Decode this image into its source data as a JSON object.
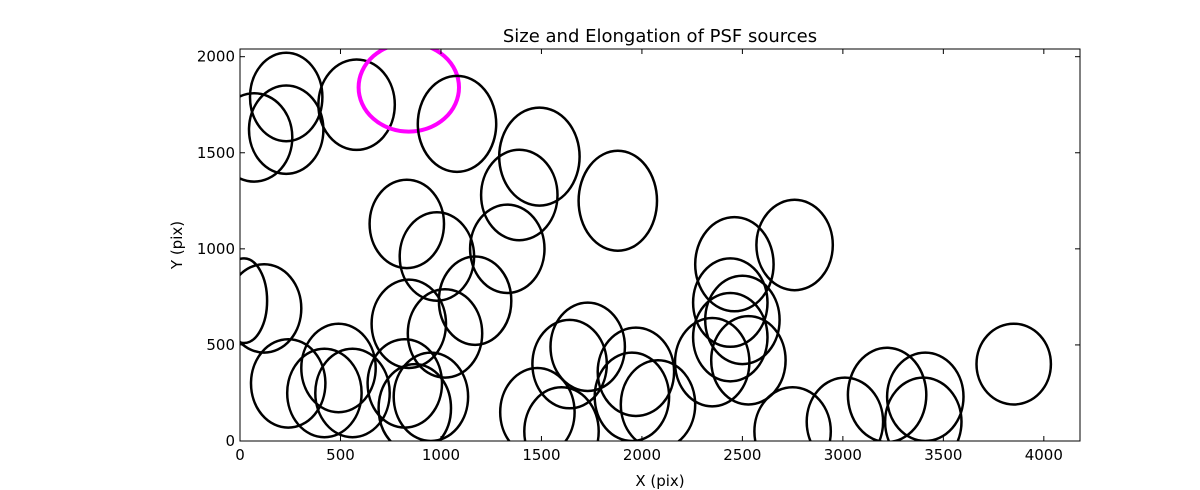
{
  "chart_data": {
    "type": "scatter",
    "marker": "ellipse",
    "title": "Size and Elongation of PSF sources",
    "xlabel": "X (pix)",
    "ylabel": "Y (pix)",
    "xlim": [
      0,
      4180
    ],
    "ylim": [
      0,
      2040
    ],
    "xticks": [
      0,
      500,
      1000,
      1500,
      2000,
      2500,
      3000,
      3500,
      4000
    ],
    "yticks": [
      0,
      500,
      1000,
      1500,
      2000
    ],
    "grid": false,
    "colors": {
      "normal": "#000000",
      "highlight": "#ff00ff"
    },
    "sources": [
      {
        "x": 230,
        "y": 1790,
        "w": 360,
        "h": 460,
        "highlight": false
      },
      {
        "x": 230,
        "y": 1620,
        "w": 370,
        "h": 460,
        "highlight": false
      },
      {
        "x": 70,
        "y": 1580,
        "w": 380,
        "h": 460,
        "highlight": false
      },
      {
        "x": 580,
        "y": 1750,
        "w": 380,
        "h": 470,
        "highlight": false
      },
      {
        "x": 840,
        "y": 1840,
        "w": 500,
        "h": 460,
        "highlight": true
      },
      {
        "x": 1080,
        "y": 1650,
        "w": 390,
        "h": 500,
        "highlight": false
      },
      {
        "x": 1490,
        "y": 1480,
        "w": 400,
        "h": 510,
        "highlight": false
      },
      {
        "x": 1390,
        "y": 1280,
        "w": 380,
        "h": 470,
        "highlight": false
      },
      {
        "x": 1880,
        "y": 1250,
        "w": 390,
        "h": 520,
        "highlight": false
      },
      {
        "x": 830,
        "y": 1130,
        "w": 370,
        "h": 460,
        "highlight": false
      },
      {
        "x": 980,
        "y": 960,
        "w": 370,
        "h": 460,
        "highlight": false
      },
      {
        "x": 1330,
        "y": 1000,
        "w": 370,
        "h": 460,
        "highlight": false
      },
      {
        "x": 1170,
        "y": 730,
        "w": 360,
        "h": 460,
        "highlight": false
      },
      {
        "x": 840,
        "y": 610,
        "w": 370,
        "h": 460,
        "highlight": false
      },
      {
        "x": 1020,
        "y": 560,
        "w": 370,
        "h": 460,
        "highlight": false
      },
      {
        "x": 20,
        "y": 730,
        "w": 230,
        "h": 440,
        "highlight": false
      },
      {
        "x": 120,
        "y": 690,
        "w": 370,
        "h": 460,
        "highlight": false
      },
      {
        "x": 240,
        "y": 300,
        "w": 370,
        "h": 460,
        "highlight": false
      },
      {
        "x": 490,
        "y": 380,
        "w": 370,
        "h": 460,
        "highlight": false
      },
      {
        "x": 420,
        "y": 250,
        "w": 370,
        "h": 460,
        "highlight": false
      },
      {
        "x": 560,
        "y": 250,
        "w": 370,
        "h": 460,
        "highlight": false
      },
      {
        "x": 820,
        "y": 300,
        "w": 370,
        "h": 460,
        "highlight": false
      },
      {
        "x": 870,
        "y": 170,
        "w": 360,
        "h": 460,
        "highlight": false
      },
      {
        "x": 950,
        "y": 230,
        "w": 370,
        "h": 460,
        "highlight": false
      },
      {
        "x": 1640,
        "y": 400,
        "w": 370,
        "h": 460,
        "highlight": false
      },
      {
        "x": 1730,
        "y": 490,
        "w": 370,
        "h": 460,
        "highlight": false
      },
      {
        "x": 1480,
        "y": 150,
        "w": 370,
        "h": 460,
        "highlight": false
      },
      {
        "x": 1600,
        "y": 50,
        "w": 370,
        "h": 460,
        "highlight": false
      },
      {
        "x": 1970,
        "y": 360,
        "w": 380,
        "h": 460,
        "highlight": false
      },
      {
        "x": 1950,
        "y": 230,
        "w": 370,
        "h": 460,
        "highlight": false
      },
      {
        "x": 2080,
        "y": 190,
        "w": 370,
        "h": 460,
        "highlight": false
      },
      {
        "x": 2350,
        "y": 410,
        "w": 370,
        "h": 460,
        "highlight": false
      },
      {
        "x": 2440,
        "y": 540,
        "w": 370,
        "h": 460,
        "highlight": false
      },
      {
        "x": 2460,
        "y": 920,
        "w": 390,
        "h": 490,
        "highlight": false
      },
      {
        "x": 2440,
        "y": 720,
        "w": 370,
        "h": 460,
        "highlight": false
      },
      {
        "x": 2500,
        "y": 630,
        "w": 370,
        "h": 460,
        "highlight": false
      },
      {
        "x": 2530,
        "y": 420,
        "w": 370,
        "h": 460,
        "highlight": false
      },
      {
        "x": 2760,
        "y": 1020,
        "w": 380,
        "h": 470,
        "highlight": false
      },
      {
        "x": 2750,
        "y": 50,
        "w": 380,
        "h": 460,
        "highlight": false
      },
      {
        "x": 3010,
        "y": 100,
        "w": 380,
        "h": 460,
        "highlight": false
      },
      {
        "x": 3220,
        "y": 240,
        "w": 390,
        "h": 490,
        "highlight": false
      },
      {
        "x": 3410,
        "y": 230,
        "w": 380,
        "h": 460,
        "highlight": false
      },
      {
        "x": 3400,
        "y": 100,
        "w": 380,
        "h": 460,
        "highlight": false
      },
      {
        "x": 3850,
        "y": 400,
        "w": 370,
        "h": 420,
        "highlight": false
      }
    ]
  }
}
